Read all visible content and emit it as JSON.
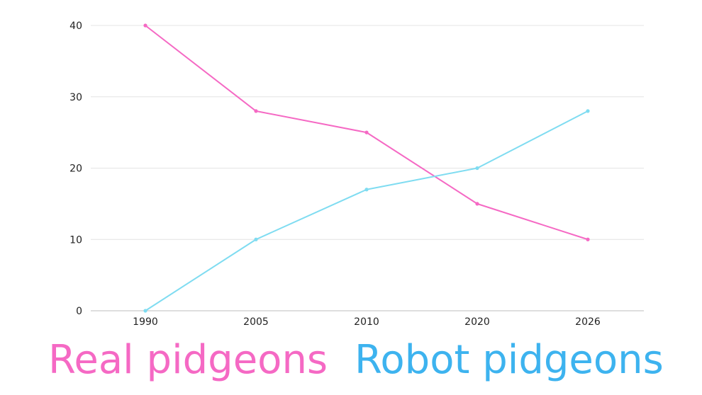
{
  "chart_data": {
    "type": "line",
    "categories": [
      "1990",
      "2005",
      "2010",
      "2020",
      "2026"
    ],
    "ylim": [
      0,
      40
    ],
    "yticks": [
      "0",
      "10",
      "20",
      "30",
      "40"
    ],
    "grid": true,
    "legend_placement": "bottom",
    "series": [
      {
        "name": "Real pidgeons",
        "values": [
          40,
          28,
          25,
          15,
          10
        ],
        "color": "#f569c4"
      },
      {
        "name": "Robot pidgeons",
        "values": [
          0,
          10,
          17,
          20,
          28
        ],
        "color": "#7fdcf1"
      }
    ],
    "legend_colors": {
      "Real pidgeons": "#f569c4",
      "Robot pidgeons": "#3db3ef"
    }
  },
  "legend": {
    "real": "Real pidgeons",
    "robot": "Robot pidgeons"
  }
}
